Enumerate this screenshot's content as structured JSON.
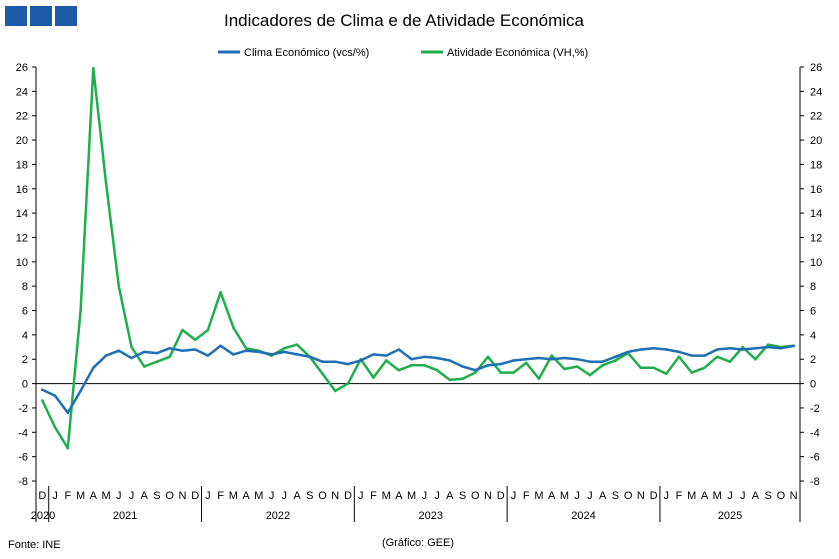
{
  "brand": {
    "name": "GEE",
    "color": "#1b5aa6"
  },
  "chart_data": {
    "type": "line",
    "title": "Indicadores de Clima e de Atividade Económica",
    "source": "Fonte: INE",
    "credit": "(Gráfico: GEE)",
    "ylim": [
      -8,
      26
    ],
    "yticks": [
      -8,
      -6,
      -4,
      -2,
      0,
      2,
      4,
      6,
      8,
      10,
      12,
      14,
      16,
      18,
      20,
      22,
      24,
      26
    ],
    "grid": false,
    "legend": "top",
    "months": [
      "D",
      "J",
      "F",
      "M",
      "A",
      "M",
      "J",
      "J",
      "A",
      "S",
      "O",
      "N",
      "D",
      "J",
      "F",
      "M",
      "A",
      "M",
      "J",
      "J",
      "A",
      "S",
      "O",
      "N",
      "D",
      "J",
      "F",
      "M",
      "A",
      "M",
      "J",
      "J",
      "A",
      "S",
      "O",
      "N",
      "D",
      "J",
      "F",
      "M",
      "A",
      "M",
      "J",
      "J",
      "A",
      "S",
      "O",
      "N",
      "D",
      "J",
      "F",
      "M",
      "A",
      "M",
      "J",
      "J",
      "A",
      "S",
      "O",
      "N"
    ],
    "years": [
      "2020",
      "2021",
      "2022",
      "2023",
      "2024",
      "2025"
    ],
    "series": [
      {
        "name": "Clima Económico (vcs/%)",
        "color": "#1f6fb4",
        "values": [
          -0.5,
          -1.0,
          -2.4,
          -0.6,
          1.3,
          2.3,
          2.7,
          2.1,
          2.6,
          2.5,
          2.9,
          2.7,
          2.8,
          2.3,
          3.1,
          2.4,
          2.7,
          2.6,
          2.4,
          2.6,
          2.4,
          2.2,
          1.8,
          1.8,
          1.6,
          1.9,
          2.4,
          2.3,
          2.8,
          2.0,
          2.2,
          2.1,
          1.9,
          1.4,
          1.1,
          1.5,
          1.6,
          1.9,
          2.0,
          2.1,
          2.0,
          2.1,
          2.0,
          1.8,
          1.8,
          2.2,
          2.6,
          2.8,
          2.9,
          2.8,
          2.6,
          2.3,
          2.3,
          2.8,
          2.9,
          2.8,
          2.9,
          3.0,
          2.9,
          3.1
        ]
      },
      {
        "name": "Atividade Económica (VH,%)",
        "color": "#1fae4b",
        "values": [
          -1.4,
          -3.6,
          -5.3,
          6.0,
          25.9,
          16.5,
          8.0,
          3.0,
          1.4,
          1.8,
          2.2,
          4.4,
          3.6,
          4.4,
          7.5,
          4.6,
          2.9,
          2.7,
          2.3,
          2.9,
          3.2,
          2.2,
          0.8,
          -0.6,
          0.0,
          2.0,
          0.5,
          1.9,
          1.1,
          1.5,
          1.5,
          1.1,
          0.3,
          0.4,
          0.9,
          2.2,
          0.9,
          0.9,
          1.7,
          0.4,
          2.3,
          1.2,
          1.4,
          0.7,
          1.5,
          1.9,
          2.5,
          1.3,
          1.3,
          0.8,
          2.2,
          0.9,
          1.3,
          2.2,
          1.8,
          3.0,
          2.0,
          3.2,
          3.0,
          3.1
        ]
      }
    ]
  }
}
